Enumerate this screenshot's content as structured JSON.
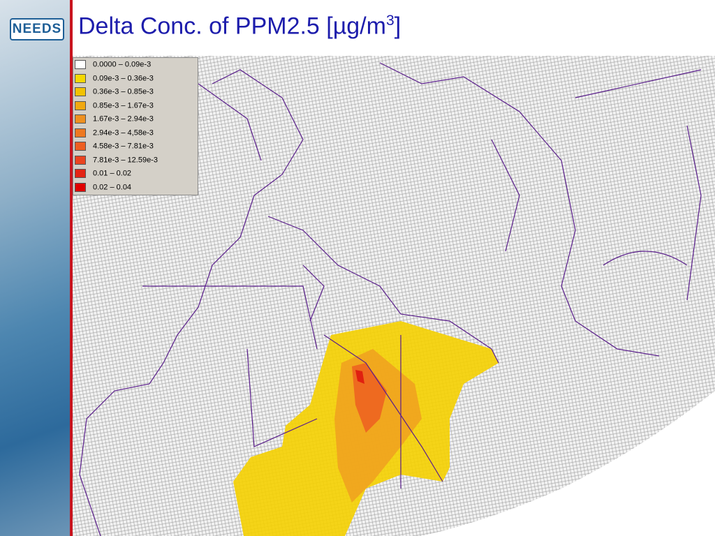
{
  "header": {
    "logo": "NEEDS",
    "title": {
      "text": "Delta Conc. of PPM2.5 [µg/m",
      "superscript": "3",
      "suffix": "]"
    }
  },
  "legend": {
    "items": [
      {
        "label": "0.0000 –  0.09e-3",
        "color": "#ffffff"
      },
      {
        "label": "0.09e-3 –  0.36e-3",
        "color": "#f5d800"
      },
      {
        "label": "0.36e-3 – 0.85e-3",
        "color": "#f2c200"
      },
      {
        "label": "0.85e-3 – 1.67e-3",
        "color": "#f0a810"
      },
      {
        "label": "1.67e-3 – 2.94e-3",
        "color": "#ee9020"
      },
      {
        "label": "2.94e-3 – 4,58e-3",
        "color": "#ee7820"
      },
      {
        "label": "4.58e-3 – 7.81e-3",
        "color": "#ee5e20"
      },
      {
        "label": "7.81e-3 – 12.59e-3",
        "color": "#ea4420"
      },
      {
        "label": "0.01 – 0.02",
        "color": "#e42414"
      },
      {
        "label": "0.02 – 0.04",
        "color": "#e00000"
      }
    ]
  }
}
